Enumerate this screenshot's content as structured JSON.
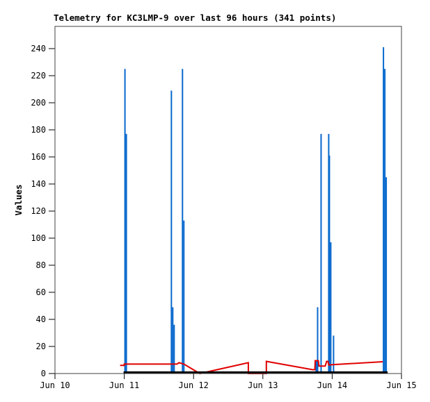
{
  "chart_data": {
    "type": "line",
    "title": "Telemetry for KC3LMP-9 over last 96 hours (341 points)",
    "ylabel": "Values",
    "xlabel": "",
    "station": "KC3LMP-9",
    "hours_window": 96,
    "points_count": 341,
    "x_axis": {
      "tick_labels": [
        "Jun 10",
        "Jun 11",
        "Jun 12",
        "Jun 13",
        "Jun 14",
        "Jun 15"
      ],
      "days_span": 5,
      "grid": false
    },
    "y_axis": {
      "min": 0,
      "max_tick": 240,
      "tick_step": 20,
      "top_value": 256,
      "grid": false
    },
    "legend": "none",
    "colors": {
      "impulses": "#0768cd",
      "line": "#e10000",
      "baseline": "#000000",
      "border": "#404040",
      "text": "#000000",
      "background": "#ffffff"
    },
    "series": [
      {
        "name": "telemetry-impulses",
        "type": "impulse",
        "color_key": "impulses",
        "width": 2,
        "points": [
          [
            1.01,
            225
          ],
          [
            1.03,
            177
          ],
          [
            1.68,
            209
          ],
          [
            1.7,
            49
          ],
          [
            1.72,
            36
          ],
          [
            1.84,
            225
          ],
          [
            1.86,
            113
          ],
          [
            3.77,
            10
          ],
          [
            3.79,
            49
          ],
          [
            3.84,
            177
          ],
          [
            3.95,
            177
          ],
          [
            3.96,
            161
          ],
          [
            3.98,
            97
          ],
          [
            4.02,
            28
          ],
          [
            4.74,
            241
          ],
          [
            4.76,
            225
          ],
          [
            4.78,
            145
          ]
        ]
      },
      {
        "name": "telemetry-line",
        "type": "line",
        "color_key": "line",
        "width": 2,
        "points": [
          [
            0.94,
            6
          ],
          [
            1.0,
            6
          ],
          [
            1.0,
            7
          ],
          [
            1.76,
            7
          ],
          [
            1.79,
            8
          ],
          [
            1.86,
            7
          ],
          [
            2.09,
            0
          ],
          [
            2.79,
            8
          ],
          [
            2.79,
            0
          ],
          [
            3.05,
            0
          ],
          [
            3.05,
            9
          ],
          [
            3.72,
            2.8
          ],
          [
            3.75,
            2.8
          ],
          [
            3.755,
            9.5
          ],
          [
            3.8,
            9.5
          ],
          [
            3.81,
            5.5
          ],
          [
            3.9,
            5.5
          ],
          [
            3.92,
            9
          ],
          [
            3.94,
            9
          ],
          [
            3.95,
            6.3
          ],
          [
            4.0,
            6.5
          ],
          [
            4.73,
            8.7
          ]
        ]
      },
      {
        "name": "telemetry-baseline",
        "type": "line",
        "color_key": "baseline",
        "width": 3,
        "points": [
          [
            0.99,
            0.8
          ],
          [
            4.8,
            0.8
          ]
        ]
      }
    ]
  }
}
